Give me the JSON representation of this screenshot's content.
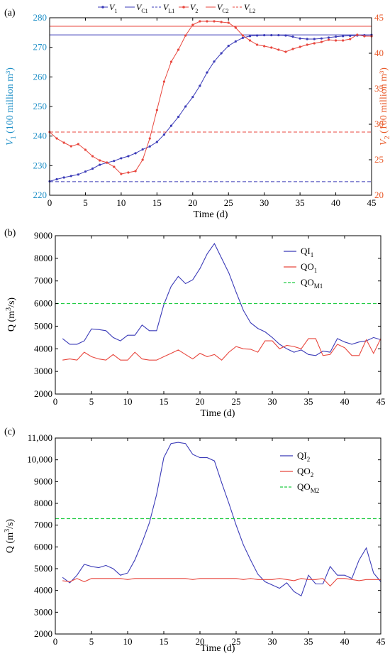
{
  "colors": {
    "blue": "#3b3bb8",
    "red": "#e8473e",
    "axis_left_a": "#1d8fc7",
    "axis_right_a": "#e85a2a",
    "green": "#22cc44",
    "black": "#000000"
  },
  "chart_data": [
    {
      "panel_label": "(a)",
      "type": "line",
      "xlabel": "Time (d)",
      "xlim": [
        0,
        45
      ],
      "xticks": [
        "0",
        "5",
        "10",
        "15",
        "20",
        "25",
        "30",
        "35",
        "40",
        "45"
      ],
      "ylabel_left": "V1 (100 million m³)",
      "ylabel_left_parts": {
        "sym": "V",
        "sub": "1",
        "rest": " (100 million m³)"
      },
      "ylim_left": [
        220,
        280
      ],
      "yticks_left": [
        "220",
        "230",
        "240",
        "250",
        "260",
        "270",
        "280"
      ],
      "ylabel_right": "V2 (100 million m³)",
      "ylabel_right_parts": {
        "sym": "V",
        "sub": "2",
        "rest": " (100 million m³)"
      },
      "ylim_right": [
        20,
        45
      ],
      "yticks_right": [
        "20",
        "25",
        "30",
        "35",
        "40",
        "45"
      ],
      "legend": [
        {
          "sym": "V",
          "sub": "1",
          "style": "blue-marker"
        },
        {
          "sym": "V",
          "sub": "C1",
          "style": "blue-solid"
        },
        {
          "sym": "V",
          "sub": "L1",
          "style": "blue-dash"
        },
        {
          "sym": "V",
          "sub": "2",
          "style": "red-marker"
        },
        {
          "sym": "V",
          "sub": "C2",
          "style": "red-solid"
        },
        {
          "sym": "V",
          "sub": "L2",
          "style": "red-dash"
        }
      ],
      "series": [
        {
          "name": "V1",
          "axis": "left",
          "x": [
            0,
            1,
            2,
            3,
            4,
            5,
            6,
            7,
            8,
            9,
            10,
            11,
            12,
            13,
            14,
            15,
            16,
            17,
            18,
            19,
            20,
            21,
            22,
            23,
            24,
            25,
            26,
            27,
            28,
            29,
            30,
            31,
            32,
            33,
            34,
            35,
            36,
            37,
            38,
            39,
            40,
            41,
            42,
            43,
            44,
            45
          ],
          "values": [
            224.7,
            225.4,
            226.0,
            226.5,
            227.0,
            228.0,
            229.0,
            230.3,
            231.0,
            231.6,
            232.5,
            233.2,
            234.2,
            235.5,
            236.5,
            238.0,
            240.5,
            243.5,
            246.5,
            250.0,
            253.2,
            257.0,
            261.5,
            265.2,
            268.0,
            270.5,
            272.0,
            273.2,
            273.8,
            274.0,
            274.1,
            274.1,
            274.1,
            274.0,
            273.6,
            273.0,
            272.8,
            272.8,
            273.0,
            273.3,
            273.6,
            273.8,
            273.9,
            274.0,
            274.1,
            274.2
          ]
        },
        {
          "name": "VC1",
          "axis": "left",
          "constant": 274.2
        },
        {
          "name": "VL1",
          "axis": "left",
          "constant": 224.6
        },
        {
          "name": "V2",
          "axis": "right",
          "x": [
            0,
            1,
            2,
            3,
            4,
            5,
            6,
            7,
            8,
            9,
            10,
            11,
            12,
            13,
            14,
            15,
            16,
            17,
            18,
            19,
            20,
            21,
            22,
            23,
            24,
            25,
            26,
            27,
            28,
            29,
            30,
            31,
            32,
            33,
            34,
            35,
            36,
            37,
            38,
            39,
            40,
            41,
            42,
            43,
            44,
            45
          ],
          "values": [
            28.9,
            28.0,
            27.4,
            26.9,
            27.2,
            26.4,
            25.5,
            24.9,
            24.6,
            24.0,
            23.0,
            23.2,
            23.4,
            25.0,
            28.0,
            32.0,
            36.0,
            38.8,
            40.5,
            42.5,
            44.0,
            44.5,
            44.5,
            44.5,
            44.4,
            44.3,
            43.6,
            42.5,
            41.8,
            41.2,
            41.0,
            40.8,
            40.5,
            40.2,
            40.6,
            40.9,
            41.2,
            41.4,
            41.6,
            41.9,
            41.8,
            41.8,
            42.0,
            42.6,
            42.4,
            42.4
          ]
        },
        {
          "name": "VC2",
          "axis": "right",
          "constant": 43.8
        },
        {
          "name": "VL2",
          "axis": "right",
          "constant": 28.9
        }
      ]
    },
    {
      "panel_label": "(b)",
      "type": "line",
      "xlabel": "Time (d)",
      "ylabel": "Q (m³/s)",
      "ylabel_parts": {
        "a": "Q (m",
        "sup": "3",
        "b": "/s)"
      },
      "xlim": [
        0,
        45
      ],
      "ylim": [
        2000,
        9000
      ],
      "xticks": [
        "0",
        "5",
        "10",
        "15",
        "20",
        "25",
        "30",
        "35",
        "40",
        "45"
      ],
      "yticks": [
        "2000",
        "3000",
        "4000",
        "5000",
        "6000",
        "7000",
        "8000",
        "9000"
      ],
      "legend": [
        {
          "sym": "QI",
          "sub": "1",
          "style": "blue-solid"
        },
        {
          "sym": "QO",
          "sub": "1",
          "style": "red-solid"
        },
        {
          "sym": "QO",
          "sub": "M1",
          "style": "green-dash"
        }
      ],
      "series": [
        {
          "name": "QI1",
          "x": [
            1,
            2,
            3,
            4,
            5,
            6,
            7,
            8,
            9,
            10,
            11,
            12,
            13,
            14,
            15,
            16,
            17,
            18,
            19,
            20,
            21,
            22,
            23,
            24,
            25,
            26,
            27,
            28,
            29,
            30,
            31,
            32,
            33,
            34,
            35,
            36,
            37,
            38,
            39,
            40,
            41,
            42,
            43,
            44,
            45
          ],
          "values": [
            4450,
            4200,
            4200,
            4350,
            4880,
            4850,
            4800,
            4500,
            4350,
            4600,
            4600,
            5050,
            4800,
            4800,
            5950,
            6750,
            7200,
            6880,
            7050,
            7550,
            8200,
            8650,
            8000,
            7350,
            6500,
            5700,
            5150,
            4900,
            4750,
            4500,
            4200,
            4000,
            3850,
            3950,
            3750,
            3700,
            3900,
            3850,
            4450,
            4300,
            4200,
            4300,
            4350,
            4500,
            4400
          ]
        },
        {
          "name": "QO1",
          "x": [
            1,
            2,
            3,
            4,
            5,
            6,
            7,
            8,
            9,
            10,
            11,
            12,
            13,
            14,
            15,
            16,
            17,
            18,
            19,
            20,
            21,
            22,
            23,
            24,
            25,
            26,
            27,
            28,
            29,
            30,
            31,
            32,
            33,
            34,
            35,
            36,
            37,
            38,
            39,
            40,
            41,
            42,
            43,
            44,
            45
          ],
          "values": [
            3500,
            3550,
            3500,
            3850,
            3650,
            3550,
            3500,
            3750,
            3500,
            3500,
            3850,
            3550,
            3500,
            3500,
            3650,
            3800,
            3950,
            3750,
            3550,
            3800,
            3650,
            3750,
            3500,
            3850,
            4100,
            4000,
            3980,
            3850,
            4350,
            4350,
            4000,
            4150,
            4100,
            4000,
            4450,
            4450,
            3700,
            3750,
            4200,
            4050,
            3700,
            3700,
            4400,
            3800,
            4450
          ]
        },
        {
          "name": "QOM1",
          "constant": 6000
        }
      ]
    },
    {
      "panel_label": "(c)",
      "type": "line",
      "xlabel": "Time (d)",
      "ylabel": "Q (m³/s)",
      "ylabel_parts": {
        "a": "Q (m",
        "sup": "3",
        "b": "/s)"
      },
      "xlim": [
        0,
        45
      ],
      "ylim": [
        2000,
        11000
      ],
      "xticks": [
        "0",
        "5",
        "10",
        "15",
        "20",
        "25",
        "30",
        "35",
        "40",
        "45"
      ],
      "yticks": [
        "2000",
        "3000",
        "4000",
        "5000",
        "6000",
        "7000",
        "8000",
        "9000",
        "10,000",
        "11,000"
      ],
      "legend": [
        {
          "sym": "QI",
          "sub": "2",
          "style": "blue-solid"
        },
        {
          "sym": "QO",
          "sub": "2",
          "style": "red-solid"
        },
        {
          "sym": "QO",
          "sub": "M2",
          "style": "green-dash"
        }
      ],
      "series": [
        {
          "name": "QI2",
          "x": [
            1,
            2,
            3,
            4,
            5,
            6,
            7,
            8,
            9,
            10,
            11,
            12,
            13,
            14,
            15,
            16,
            17,
            18,
            19,
            20,
            21,
            22,
            23,
            24,
            25,
            26,
            27,
            28,
            29,
            30,
            31,
            32,
            33,
            34,
            35,
            36,
            37,
            38,
            39,
            40,
            41,
            42,
            43,
            44,
            45
          ],
          "values": [
            4600,
            4350,
            4700,
            5200,
            5100,
            5050,
            5150,
            5000,
            4700,
            4800,
            5400,
            6200,
            7100,
            8400,
            10100,
            10750,
            10800,
            10750,
            10250,
            10100,
            10100,
            9950,
            8950,
            8000,
            7000,
            6100,
            5400,
            4750,
            4400,
            4250,
            4100,
            4350,
            3950,
            3750,
            4700,
            4300,
            4300,
            5100,
            4700,
            4700,
            4550,
            5400,
            5950,
            4800,
            4400
          ]
        },
        {
          "name": "QO2",
          "x": [
            1,
            2,
            3,
            4,
            5,
            6,
            7,
            8,
            9,
            10,
            11,
            12,
            13,
            14,
            15,
            16,
            17,
            18,
            19,
            20,
            21,
            22,
            23,
            24,
            25,
            26,
            27,
            28,
            29,
            30,
            31,
            32,
            33,
            34,
            35,
            36,
            37,
            38,
            39,
            40,
            41,
            42,
            43,
            44,
            45
          ],
          "values": [
            4450,
            4400,
            4550,
            4400,
            4550,
            4550,
            4550,
            4550,
            4550,
            4500,
            4550,
            4550,
            4550,
            4550,
            4550,
            4550,
            4550,
            4550,
            4500,
            4550,
            4550,
            4550,
            4550,
            4550,
            4550,
            4500,
            4550,
            4500,
            4500,
            4500,
            4550,
            4500,
            4450,
            4550,
            4500,
            4500,
            4550,
            4200,
            4550,
            4550,
            4500,
            4450,
            4500,
            4500,
            4500
          ]
        },
        {
          "name": "QOM2",
          "constant": 7300
        }
      ]
    }
  ]
}
